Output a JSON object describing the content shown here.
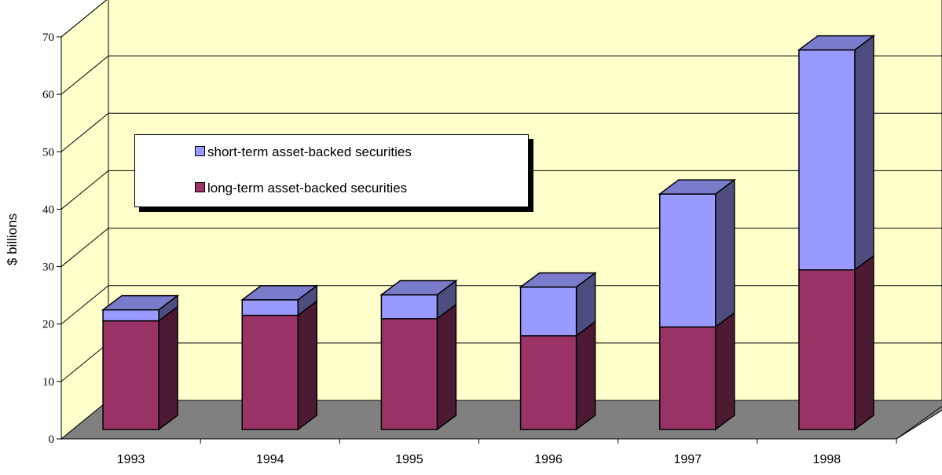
{
  "colors": {
    "wall": "#FFFFCC",
    "floor": "#808080",
    "short_term": "#9999FF",
    "short_term_top": "#7B7BCC",
    "short_term_side": "#4D4D80",
    "long_term": "#993366",
    "long_term_side": "#4D1A33",
    "gridline": "#000000"
  },
  "chart_data": {
    "type": "bar",
    "stacked": true,
    "three_d": true,
    "categories": [
      "1993",
      "1994",
      "1995",
      "1996",
      "1997",
      "1998"
    ],
    "series": [
      {
        "name": "long-term asset-backed securities",
        "values": [
          19.6,
          20.6,
          20.0,
          16.9,
          18.5,
          28.8
        ]
      },
      {
        "name": "short-term asset-backed securities",
        "values": [
          2.0,
          2.8,
          4.3,
          8.8,
          24.0,
          39.7
        ]
      }
    ],
    "ylabel": "$ billions",
    "xlabel": "",
    "ylim": [
      0,
      70
    ],
    "yticks": [
      "0",
      "10",
      "20",
      "30",
      "40",
      "50",
      "60",
      "70"
    ],
    "grid": true,
    "legend": {
      "position": "upper-left",
      "entries": [
        "short-term asset-backed securities",
        "long-term asset-backed securities"
      ]
    }
  }
}
